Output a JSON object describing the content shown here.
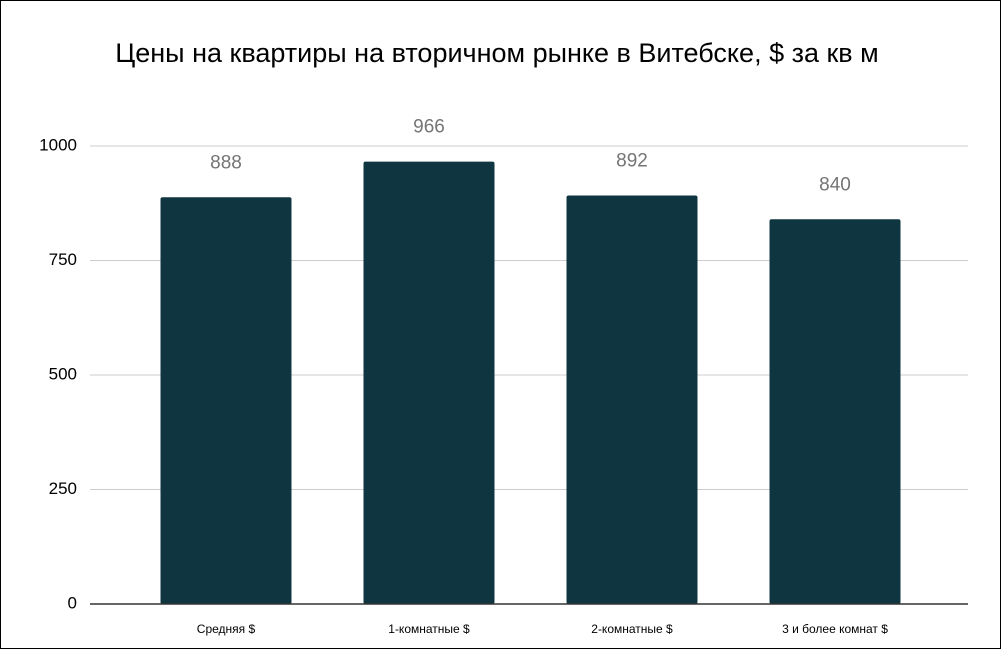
{
  "chart_data": {
    "type": "bar",
    "title": "Цены на квартиры на вторичном рынке в Витебске, $ за кв м",
    "categories": [
      "Средняя $",
      "1-комнатные $",
      "2-комнатные $",
      "3 и более комнат $"
    ],
    "values": [
      888,
      966,
      892,
      840
    ],
    "color": "#0f3640",
    "ylim": [
      0,
      1000
    ],
    "yticks": [
      0,
      250,
      500,
      750,
      1000
    ],
    "grid": true
  }
}
